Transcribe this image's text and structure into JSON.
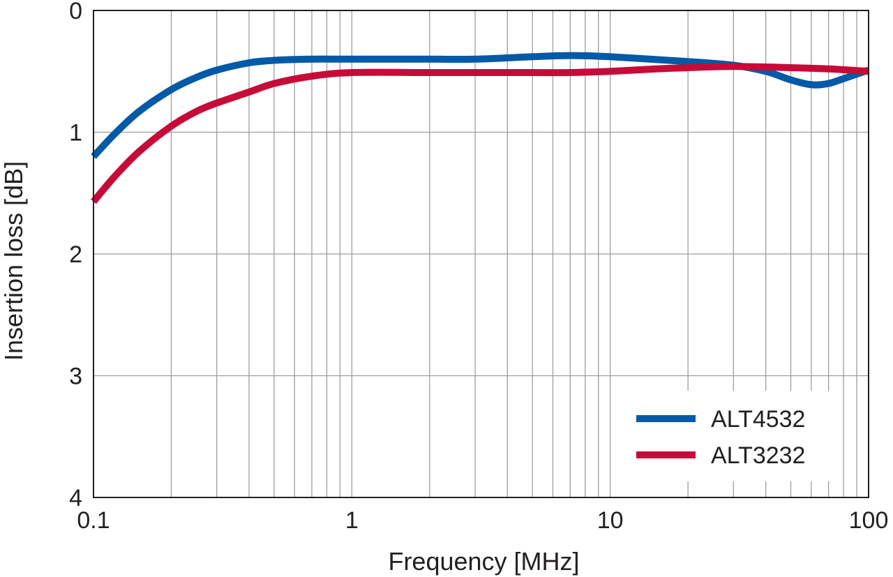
{
  "chart_data": {
    "type": "line",
    "title": "",
    "xlabel": "Frequency [MHz]",
    "ylabel": "Insertion loss [dB]",
    "x_scale": "log",
    "xlim": [
      0.1,
      100
    ],
    "ylim": [
      0,
      4
    ],
    "y_inverted": true,
    "x_ticks": [
      "0.1",
      "1",
      "10",
      "100"
    ],
    "y_ticks": [
      "0",
      "1",
      "2",
      "3",
      "4"
    ],
    "grid": true,
    "legend_position": "bottom-right",
    "series": [
      {
        "name": "ALT4532",
        "color": "#005aa7",
        "x": [
          0.1,
          0.12,
          0.15,
          0.2,
          0.25,
          0.3,
          0.4,
          0.5,
          0.7,
          1,
          2,
          3,
          5,
          7,
          10,
          20,
          30,
          40,
          50,
          60,
          70,
          80,
          100
        ],
        "y": [
          1.2,
          1.02,
          0.83,
          0.65,
          0.55,
          0.49,
          0.43,
          0.41,
          0.4,
          0.4,
          0.4,
          0.4,
          0.38,
          0.37,
          0.38,
          0.42,
          0.45,
          0.5,
          0.57,
          0.61,
          0.6,
          0.56,
          0.49
        ]
      },
      {
        "name": "ALT3232",
        "color": "#c70b39",
        "x": [
          0.1,
          0.12,
          0.15,
          0.2,
          0.25,
          0.3,
          0.4,
          0.5,
          0.7,
          1,
          2,
          3,
          5,
          7,
          10,
          15,
          20,
          30,
          50,
          70,
          100
        ],
        "y": [
          1.57,
          1.37,
          1.16,
          0.95,
          0.83,
          0.76,
          0.67,
          0.6,
          0.54,
          0.51,
          0.51,
          0.51,
          0.51,
          0.51,
          0.5,
          0.48,
          0.47,
          0.46,
          0.47,
          0.48,
          0.5
        ]
      }
    ]
  }
}
